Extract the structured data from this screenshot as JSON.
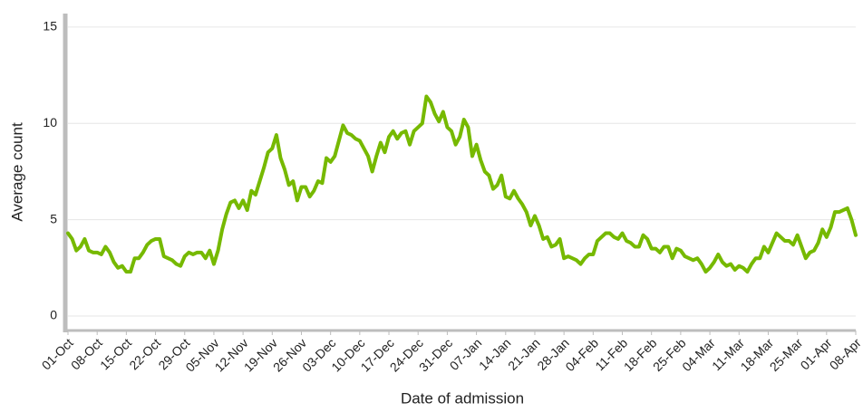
{
  "chart_data": {
    "type": "line",
    "x_label": "Date of admission",
    "y_label": "Average count",
    "color": "#76b900",
    "grid": true,
    "ylim": [
      -0.75,
      15.7
    ],
    "yticks": [
      0,
      5,
      10,
      15
    ],
    "categories": [
      "01-Oct",
      null,
      null,
      null,
      null,
      null,
      null,
      "08-Oct",
      null,
      null,
      null,
      null,
      null,
      null,
      "15-Oct",
      null,
      null,
      null,
      null,
      null,
      null,
      "22-Oct",
      null,
      null,
      null,
      null,
      null,
      null,
      "29-Oct",
      null,
      null,
      null,
      null,
      null,
      null,
      "05-Nov",
      null,
      null,
      null,
      null,
      null,
      null,
      "12-Nov",
      null,
      null,
      null,
      null,
      null,
      null,
      "19-Nov",
      null,
      null,
      null,
      null,
      null,
      null,
      "26-Nov",
      null,
      null,
      null,
      null,
      null,
      null,
      "03-Dec",
      null,
      null,
      null,
      null,
      null,
      null,
      "10-Dec",
      null,
      null,
      null,
      null,
      null,
      null,
      "17-Dec",
      null,
      null,
      null,
      null,
      null,
      null,
      "24-Dec",
      null,
      null,
      null,
      null,
      null,
      null,
      "31-Dec",
      null,
      null,
      null,
      null,
      null,
      null,
      "07-Jan",
      null,
      null,
      null,
      null,
      null,
      null,
      "14-Jan",
      null,
      null,
      null,
      null,
      null,
      null,
      "21-Jan",
      null,
      null,
      null,
      null,
      null,
      null,
      "28-Jan",
      null,
      null,
      null,
      null,
      null,
      null,
      "04-Feb",
      null,
      null,
      null,
      null,
      null,
      null,
      "11-Feb",
      null,
      null,
      null,
      null,
      null,
      null,
      "18-Feb",
      null,
      null,
      null,
      null,
      null,
      null,
      "25-Feb",
      null,
      null,
      null,
      null,
      null,
      null,
      "04-Mar",
      null,
      null,
      null,
      null,
      null,
      null,
      "11-Mar",
      null,
      null,
      null,
      null,
      null,
      null,
      "18-Mar",
      null,
      null,
      null,
      null,
      null,
      null,
      "25-Mar",
      null,
      null,
      null,
      null,
      null,
      null,
      "01-Apr",
      null,
      null,
      null,
      null,
      null,
      null,
      "08-Apr"
    ],
    "values": [
      4.3,
      4.0,
      3.4,
      3.6,
      4.0,
      3.4,
      3.3,
      3.3,
      3.2,
      3.6,
      3.3,
      2.8,
      2.5,
      2.6,
      2.3,
      2.3,
      3.0,
      3.0,
      3.3,
      3.7,
      3.9,
      4.0,
      4.0,
      3.1,
      3.0,
      2.9,
      2.7,
      2.6,
      3.1,
      3.3,
      3.2,
      3.3,
      3.3,
      3.0,
      3.4,
      2.7,
      3.4,
      4.5,
      5.3,
      5.9,
      6.0,
      5.6,
      6.0,
      5.5,
      6.5,
      6.3,
      7.0,
      7.7,
      8.5,
      8.7,
      9.4,
      8.2,
      7.6,
      6.8,
      7.0,
      6.0,
      6.7,
      6.7,
      6.2,
      6.5,
      7.0,
      6.9,
      8.2,
      8.0,
      8.3,
      9.1,
      9.9,
      9.5,
      9.4,
      9.2,
      9.1,
      8.7,
      8.3,
      7.5,
      8.3,
      9.0,
      8.5,
      9.3,
      9.6,
      9.2,
      9.5,
      9.6,
      8.9,
      9.6,
      9.8,
      10.0,
      11.4,
      11.1,
      10.5,
      10.1,
      10.6,
      9.8,
      9.6,
      8.9,
      9.3,
      10.2,
      9.8,
      8.3,
      8.9,
      8.1,
      7.5,
      7.3,
      6.6,
      6.8,
      7.3,
      6.2,
      6.1,
      6.5,
      6.1,
      5.8,
      5.4,
      4.7,
      5.2,
      4.7,
      4.0,
      4.1,
      3.6,
      3.7,
      4.0,
      3.0,
      3.1,
      3.0,
      2.9,
      2.7,
      3.0,
      3.2,
      3.2,
      3.9,
      4.1,
      4.3,
      4.3,
      4.1,
      4.0,
      4.3,
      3.9,
      3.8,
      3.6,
      3.6,
      4.2,
      4.0,
      3.5,
      3.5,
      3.3,
      3.6,
      3.6,
      3.0,
      3.5,
      3.4,
      3.1,
      3.0,
      2.9,
      3.0,
      2.7,
      2.3,
      2.5,
      2.8,
      3.2,
      2.8,
      2.6,
      2.7,
      2.4,
      2.6,
      2.5,
      2.3,
      2.7,
      3.0,
      3.0,
      3.6,
      3.3,
      3.8,
      4.3,
      4.1,
      3.9,
      3.9,
      3.7,
      4.2,
      3.6,
      3.0,
      3.3,
      3.4,
      3.8,
      4.5,
      4.1,
      4.6,
      5.4,
      5.4,
      5.5,
      5.6,
      5.0,
      4.2
    ]
  }
}
